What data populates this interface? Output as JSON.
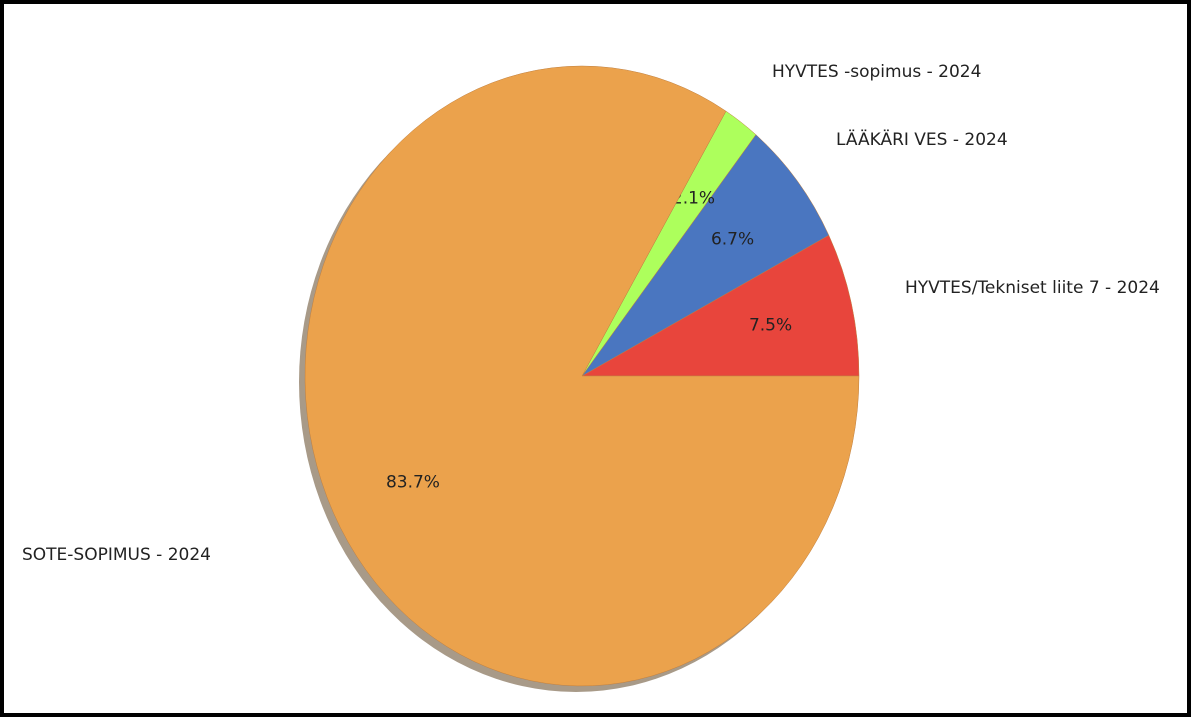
{
  "chart_data": {
    "type": "pie",
    "categories": [
      "HYVTES -sopimus - 2024",
      "LÄÄKÄRI VES - 2024",
      "HYVTES/Tekniset liite 7 - 2024",
      "SOTE-SOPIMUS - 2024"
    ],
    "values": [
      7.5,
      6.7,
      2.1,
      83.7
    ],
    "value_labels": [
      "7.5%",
      "6.7%",
      "2.1%",
      "83.7%"
    ],
    "colors": [
      "#e8453c",
      "#4a76c0",
      "#adff5c",
      "#eba24c"
    ]
  }
}
